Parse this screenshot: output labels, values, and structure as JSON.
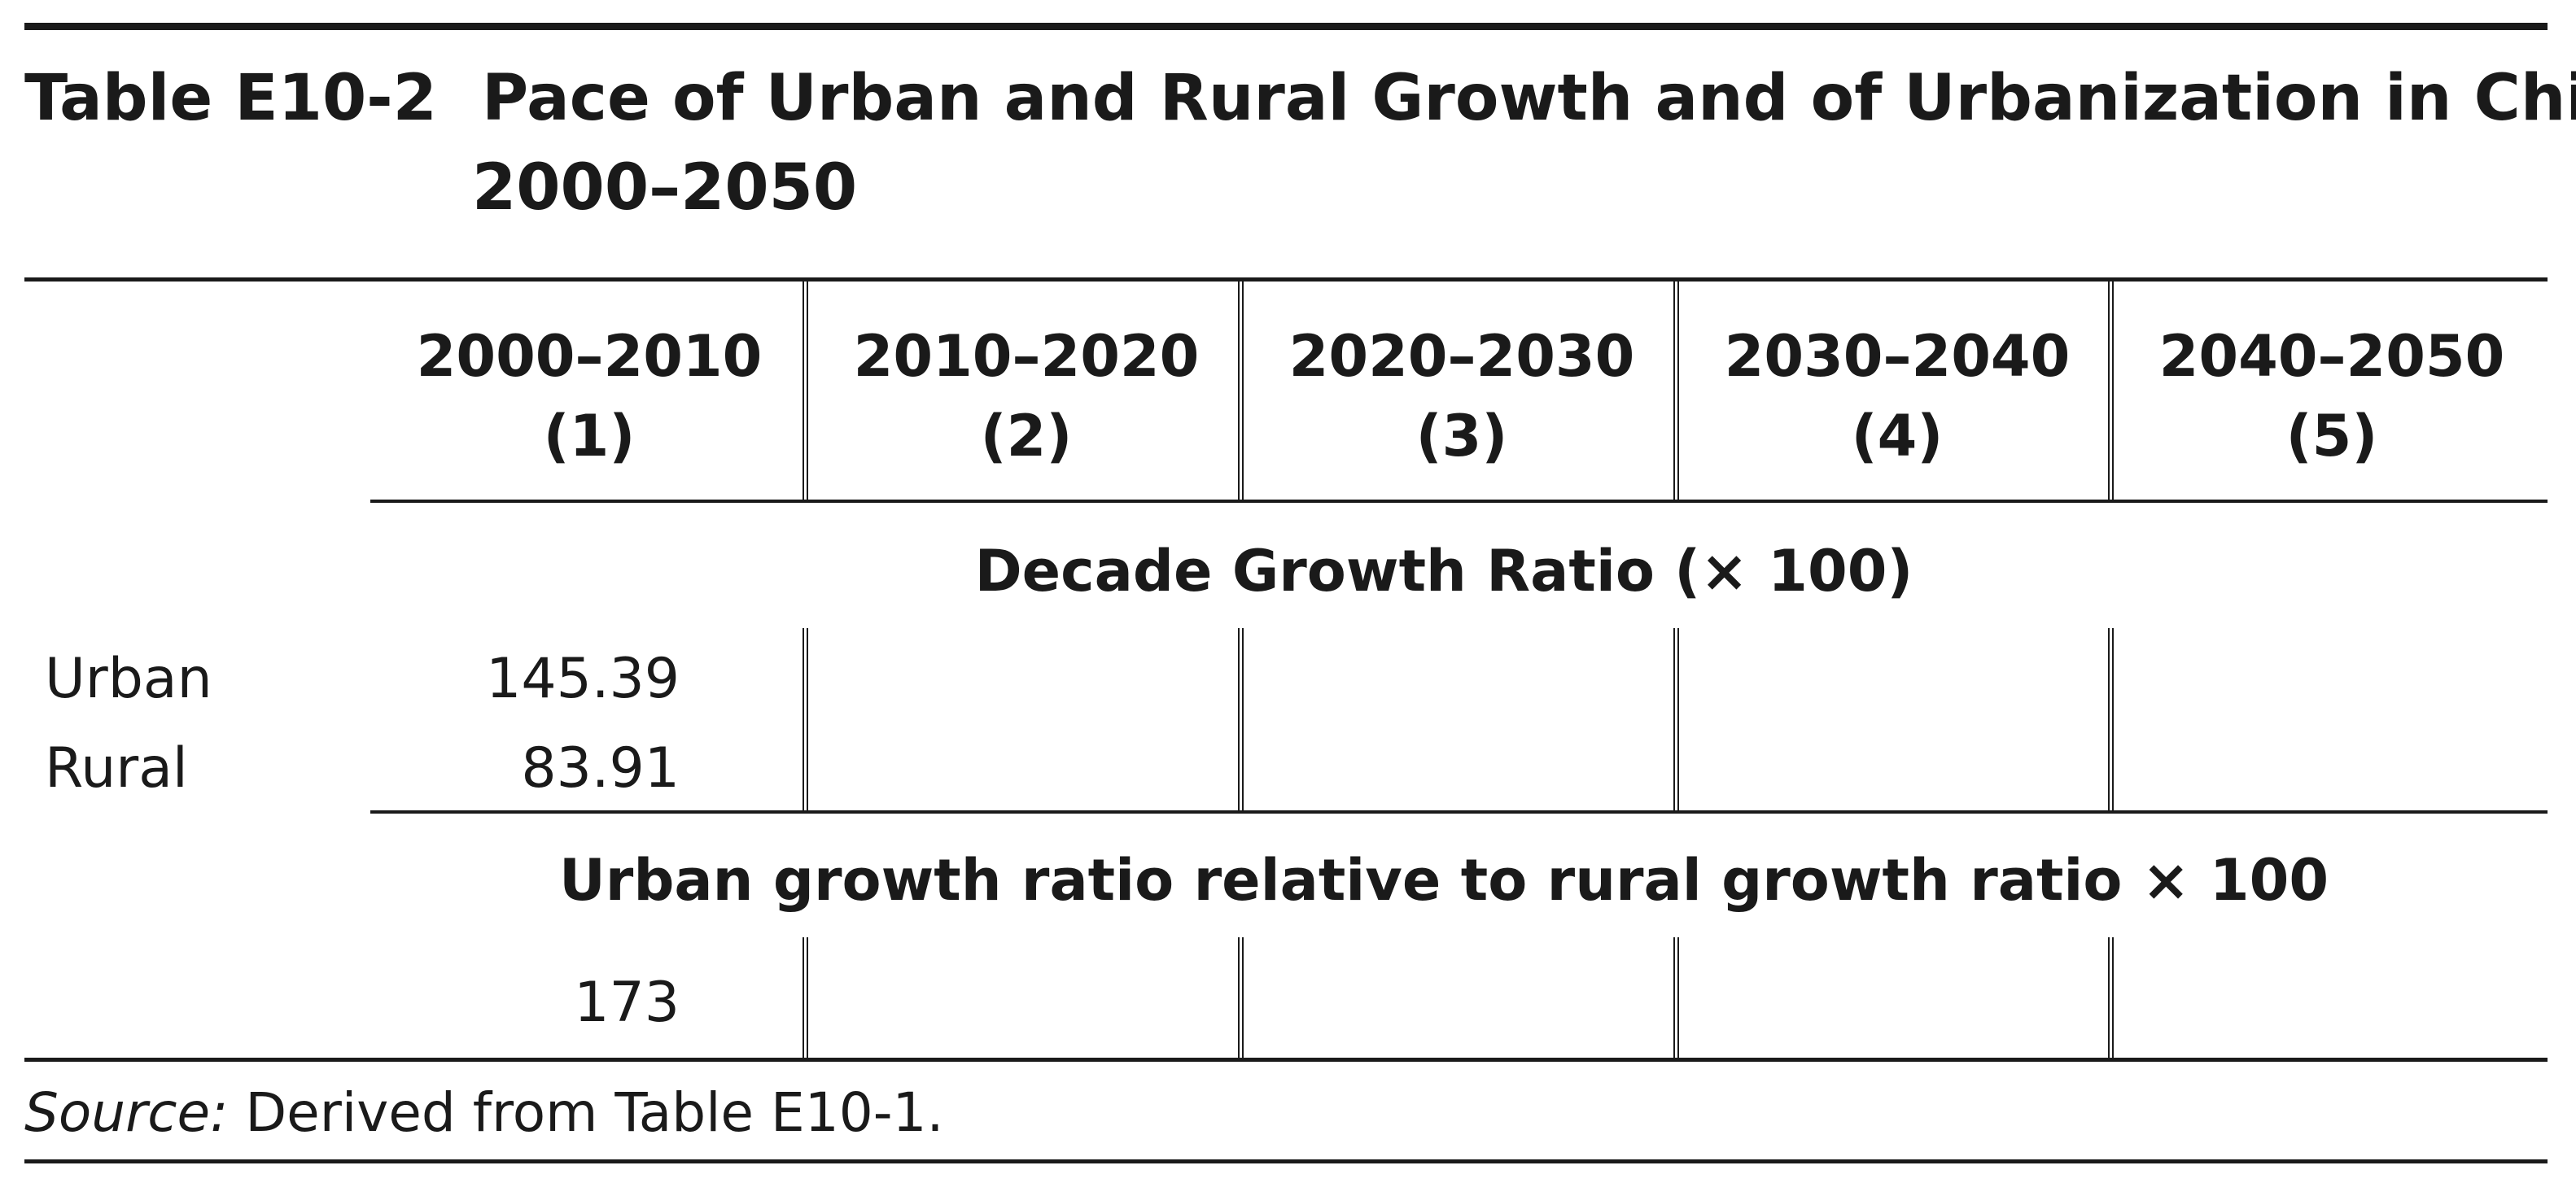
{
  "table": {
    "label": "Table E10-2",
    "title_line1": "Pace of Urban and Rural Growth and of Urbanization in China,",
    "title_line2": "2000–2050",
    "columns": [
      {
        "years": "2000–2010",
        "number": "(1)"
      },
      {
        "years": "2010–2020",
        "number": "(2)"
      },
      {
        "years": "2020–2030",
        "number": "(3)"
      },
      {
        "years": "2030–2040",
        "number": "(4)"
      },
      {
        "years": "2040–2050",
        "number": "(5)"
      }
    ],
    "sections": [
      {
        "heading": "Decade Growth Ratio (× 100)",
        "rows": [
          {
            "label": "Urban",
            "values": [
              "145.39",
              "",
              "",
              "",
              ""
            ]
          },
          {
            "label": "Rural",
            "values": [
              "83.91",
              "",
              "",
              "",
              ""
            ]
          }
        ]
      },
      {
        "heading": "Urban growth ratio relative to rural growth ratio × 100",
        "rows": [
          {
            "label": "",
            "values": [
              "173",
              "",
              "",
              "",
              ""
            ]
          }
        ]
      }
    ],
    "source_prefix": "Source:",
    "source_text": " Derived from Table E10-1."
  }
}
